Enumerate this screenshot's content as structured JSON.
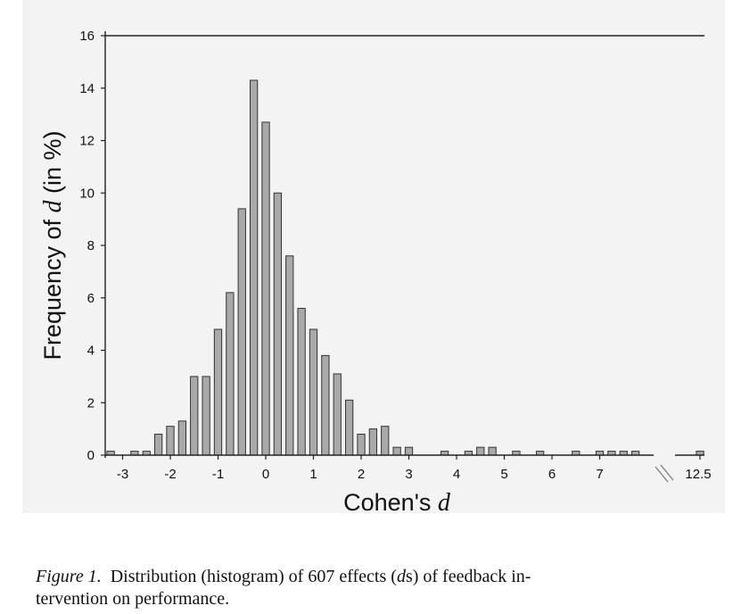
{
  "chart_data": {
    "type": "bar",
    "ylabel_prefix": "Frequency of ",
    "ylabel_var": "d",
    "ylabel_suffix": " (in %)",
    "xlabel_prefix": "Cohen's ",
    "xlabel_var": "d",
    "ylim": [
      0,
      16
    ],
    "yticks": [
      0,
      2,
      4,
      6,
      8,
      10,
      12,
      14,
      16
    ],
    "xticks": [
      -3,
      -2,
      -1,
      0,
      1,
      2,
      3,
      4,
      5,
      6,
      7
    ],
    "break_label": "12.5",
    "bin_width": 0.25,
    "x": [
      -3.25,
      -2.75,
      -2.5,
      -2.25,
      -2.0,
      -1.75,
      -1.5,
      -1.25,
      -1.0,
      -0.75,
      -0.5,
      -0.25,
      0.0,
      0.25,
      0.5,
      0.75,
      1.0,
      1.25,
      1.5,
      1.75,
      2.0,
      2.25,
      2.5,
      2.75,
      3.0,
      3.75,
      4.25,
      4.5,
      4.75,
      5.25,
      5.75,
      6.5,
      7.0,
      7.25,
      7.5,
      7.75,
      12.5
    ],
    "values": [
      0.15,
      0.15,
      0.15,
      0.8,
      1.1,
      1.3,
      3.0,
      3.0,
      4.8,
      6.2,
      9.4,
      14.3,
      12.7,
      10.0,
      7.6,
      5.6,
      4.8,
      3.8,
      3.1,
      2.1,
      0.8,
      1.0,
      1.1,
      0.3,
      0.3,
      0.15,
      0.15,
      0.3,
      0.3,
      0.15,
      0.15,
      0.15,
      0.15,
      0.15,
      0.15,
      0.15,
      0.15
    ]
  },
  "caption": {
    "label": "Figure 1.",
    "text_1": "Distribution (histogram) of 607 effects (",
    "var": "d",
    "text_2": "s) of feedback in-",
    "text_3": "tervention on performance."
  }
}
